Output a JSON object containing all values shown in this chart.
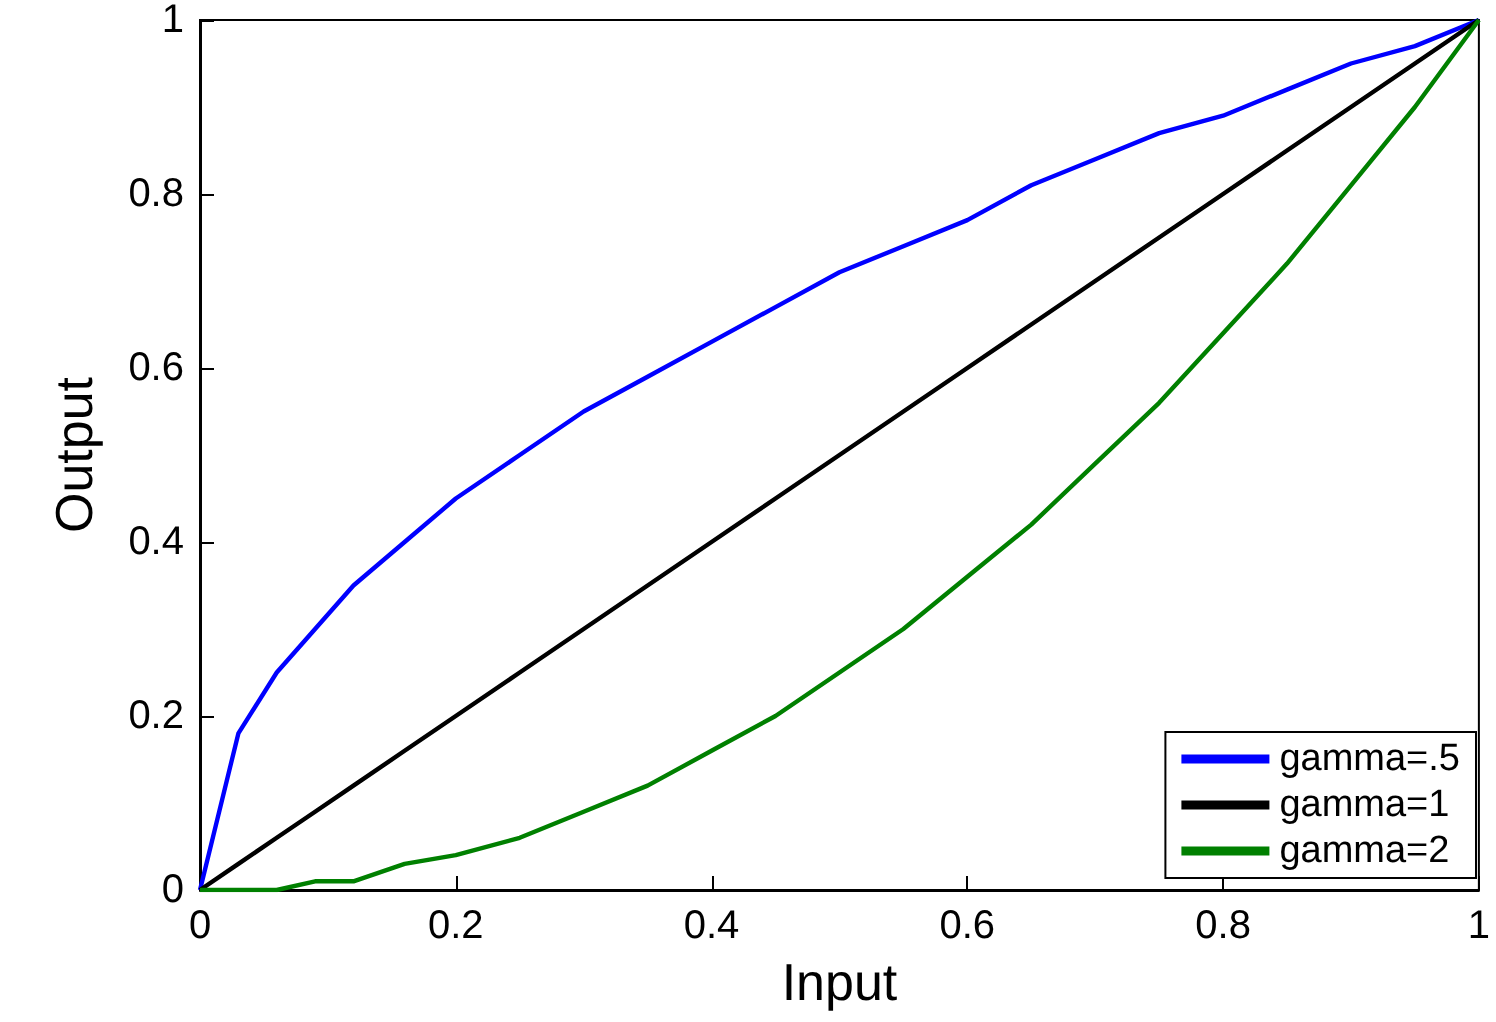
{
  "chart_data": {
    "type": "line",
    "xlabel": "Input",
    "ylabel": "Output",
    "x": [
      0,
      0.03,
      0.06,
      0.09,
      0.12,
      0.16,
      0.2,
      0.25,
      0.3,
      0.35,
      0.4,
      0.45,
      0.5,
      0.55,
      0.6,
      0.65,
      0.7,
      0.75,
      0.8,
      0.85,
      0.9,
      0.95,
      1
    ],
    "series": [
      {
        "name": "gamma=.5",
        "color": "#0000ff",
        "values": [
          0,
          0.18,
          0.25,
          0.3,
          0.35,
          0.4,
          0.45,
          0.5,
          0.55,
          0.59,
          0.63,
          0.67,
          0.71,
          0.74,
          0.77,
          0.81,
          0.84,
          0.87,
          0.89,
          0.92,
          0.95,
          0.97,
          1
        ]
      },
      {
        "name": "gamma=1",
        "color": "#000000",
        "values": [
          0,
          0.03,
          0.06,
          0.09,
          0.12,
          0.16,
          0.2,
          0.25,
          0.3,
          0.35,
          0.4,
          0.45,
          0.5,
          0.55,
          0.6,
          0.65,
          0.7,
          0.75,
          0.8,
          0.85,
          0.9,
          0.95,
          1
        ]
      },
      {
        "name": "gamma=2",
        "color": "#008000",
        "values": [
          0,
          0,
          0,
          0.01,
          0.01,
          0.03,
          0.04,
          0.06,
          0.09,
          0.12,
          0.16,
          0.2,
          0.25,
          0.3,
          0.36,
          0.42,
          0.49,
          0.56,
          0.64,
          0.72,
          0.81,
          0.9,
          1
        ]
      }
    ],
    "xlim": [
      0,
      1
    ],
    "xticks": [
      0,
      0.2,
      0.4,
      0.6,
      0.8,
      1
    ],
    "ylim": [
      0,
      1
    ],
    "yticks": [
      0,
      0.2,
      0.4,
      0.6,
      0.8,
      1
    ],
    "grid": false,
    "legend": "bottom right",
    "marker": "none",
    "line_style": "solid"
  }
}
